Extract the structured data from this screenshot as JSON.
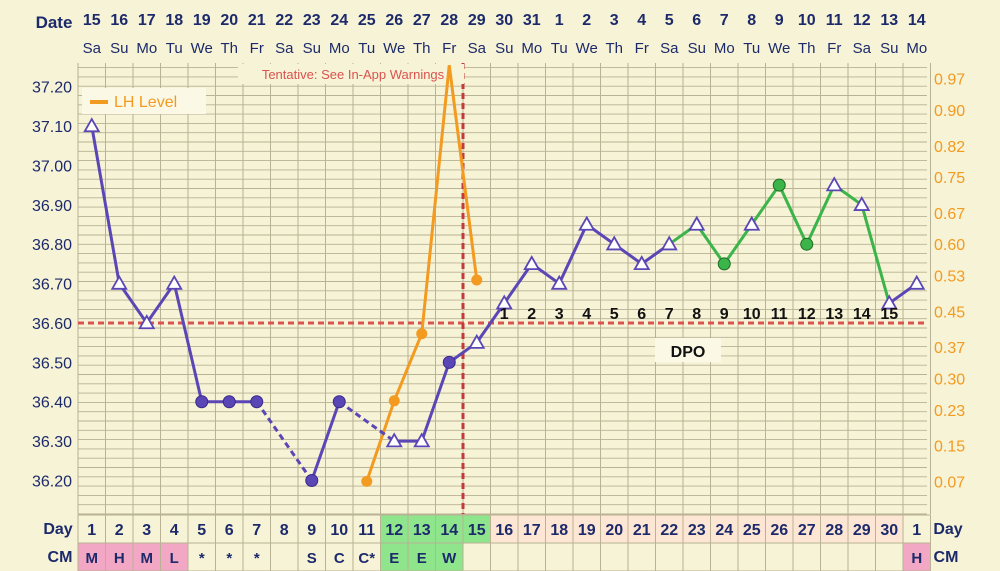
{
  "header": {
    "date_label": "Date",
    "day_label": "Day",
    "cm_label": "CM"
  },
  "annotations": {
    "tentative": "Tentative: See In-App Warnings",
    "dpo": "DPO"
  },
  "legend": {
    "lh": "LH Level"
  },
  "colors": {
    "temp_line": "#5b46b6",
    "post_line": "#3bb54a",
    "lh_line": "#f39a21",
    "coverline": "#d9534f",
    "ovulation_line": "#c23a3a",
    "grid": "#b9b294",
    "background": "#f7f3d6",
    "cm_pink": "#f2a7c4",
    "cm_green": "#8fe58c"
  },
  "chart_data": {
    "type": "line",
    "dates": [
      "15",
      "16",
      "17",
      "18",
      "19",
      "20",
      "21",
      "22",
      "23",
      "24",
      "25",
      "26",
      "27",
      "28",
      "29",
      "30",
      "31",
      "1",
      "2",
      "3",
      "4",
      "5",
      "6",
      "7",
      "8",
      "9",
      "10",
      "11",
      "12",
      "13",
      "14"
    ],
    "weekdays": [
      "Sa",
      "Su",
      "Mo",
      "Tu",
      "We",
      "Th",
      "Fr",
      "Sa",
      "Su",
      "Mo",
      "Tu",
      "We",
      "Th",
      "Fr",
      "Sa",
      "Su",
      "Mo",
      "Tu",
      "We",
      "Th",
      "Fr",
      "Sa",
      "Su",
      "Mo",
      "Tu",
      "We",
      "Th",
      "Fr",
      "Sa",
      "Su",
      "Mo"
    ],
    "cycle_days": [
      "1",
      "2",
      "3",
      "4",
      "5",
      "6",
      "7",
      "8",
      "9",
      "10",
      "11",
      "12",
      "13",
      "14",
      "15",
      "16",
      "17",
      "18",
      "19",
      "20",
      "21",
      "22",
      "23",
      "24",
      "25",
      "26",
      "27",
      "28",
      "29",
      "30",
      "1"
    ],
    "cervical_mucus": [
      "M",
      "H",
      "M",
      "L",
      "*",
      "*",
      "*",
      "",
      "S",
      "C",
      "C*",
      "E",
      "E",
      "W",
      "",
      "",
      "",
      "",
      "",
      "",
      "",
      "",
      "",
      "",
      "",
      "",
      "",
      "",
      "",
      "",
      "H"
    ],
    "y_left": {
      "ticks": [
        "36.20",
        "36.30",
        "36.40",
        "36.50",
        "36.60",
        "36.70",
        "36.80",
        "36.90",
        "37.00",
        "37.10",
        "37.20"
      ],
      "min": 36.115,
      "max": 37.26
    },
    "y_right": {
      "ticks": [
        "0.07",
        "0.15",
        "0.23",
        "0.30",
        "0.37",
        "0.45",
        "0.53",
        "0.60",
        "0.67",
        "0.75",
        "0.82",
        "0.90",
        "0.97"
      ],
      "min": -0.003,
      "max": 1.005
    },
    "temperature": [
      37.1,
      36.7,
      36.6,
      36.7,
      36.4,
      36.4,
      36.4,
      null,
      36.2,
      36.4,
      null,
      36.3,
      36.3,
      36.5,
      36.55,
      36.65,
      36.75,
      36.7,
      36.85,
      36.8,
      36.75,
      36.8,
      36.85,
      36.75,
      36.85,
      36.95,
      36.8,
      36.95,
      36.9,
      36.65,
      36.7
    ],
    "temp_markers": [
      "open",
      "open",
      "open",
      "open",
      "filled",
      "filled",
      "filled",
      null,
      "filled",
      "filled",
      null,
      "open",
      "open",
      "filled",
      "open",
      "open",
      "open",
      "open",
      "open",
      "open",
      "open",
      "open",
      "open",
      "filled",
      "open",
      "filled",
      "filled",
      "open",
      "open",
      "open",
      "open"
    ],
    "temp_segments": [
      {
        "from": 0,
        "to": 1,
        "style": "solid",
        "series": "temp"
      },
      {
        "from": 1,
        "to": 2,
        "style": "solid",
        "series": "temp"
      },
      {
        "from": 2,
        "to": 3,
        "style": "solid",
        "series": "temp"
      },
      {
        "from": 3,
        "to": 4,
        "style": "solid",
        "series": "temp"
      },
      {
        "from": 4,
        "to": 5,
        "style": "solid",
        "series": "temp"
      },
      {
        "from": 5,
        "to": 6,
        "style": "solid",
        "series": "temp"
      },
      {
        "from": 6,
        "to": 8,
        "style": "dashed",
        "series": "temp"
      },
      {
        "from": 8,
        "to": 9,
        "style": "solid",
        "series": "temp"
      },
      {
        "from": 9,
        "to": 11,
        "style": "dashed",
        "series": "temp"
      },
      {
        "from": 11,
        "to": 12,
        "style": "solid",
        "series": "temp"
      },
      {
        "from": 12,
        "to": 13,
        "style": "solid",
        "series": "temp"
      },
      {
        "from": 13,
        "to": 14,
        "style": "solid",
        "series": "temp"
      },
      {
        "from": 14,
        "to": 15,
        "style": "solid",
        "series": "temp"
      },
      {
        "from": 15,
        "to": 16,
        "style": "solid",
        "series": "temp"
      },
      {
        "from": 16,
        "to": 17,
        "style": "solid",
        "series": "temp"
      },
      {
        "from": 17,
        "to": 18,
        "style": "solid",
        "series": "temp"
      },
      {
        "from": 18,
        "to": 19,
        "style": "solid",
        "series": "temp"
      },
      {
        "from": 19,
        "to": 20,
        "style": "solid",
        "series": "temp"
      },
      {
        "from": 20,
        "to": 21,
        "style": "solid",
        "series": "temp"
      },
      {
        "from": 21,
        "to": 22,
        "style": "solid",
        "series": "post"
      },
      {
        "from": 22,
        "to": 23,
        "style": "solid",
        "series": "post"
      },
      {
        "from": 23,
        "to": 24,
        "style": "solid",
        "series": "post"
      },
      {
        "from": 24,
        "to": 25,
        "style": "solid",
        "series": "post"
      },
      {
        "from": 25,
        "to": 26,
        "style": "solid",
        "series": "post"
      },
      {
        "from": 26,
        "to": 27,
        "style": "solid",
        "series": "post"
      },
      {
        "from": 27,
        "to": 28,
        "style": "solid",
        "series": "post"
      },
      {
        "from": 28,
        "to": 29,
        "style": "solid",
        "series": "post"
      },
      {
        "from": 29,
        "to": 30,
        "style": "solid",
        "series": "temp"
      }
    ],
    "lh": [
      {
        "day": 11,
        "value": 0.07
      },
      {
        "day": 12,
        "value": 0.25
      },
      {
        "day": 13,
        "value": 0.4
      },
      {
        "day": 14,
        "value": 1.0
      },
      {
        "day": 15,
        "value": 0.52
      }
    ],
    "coverline": 36.6,
    "ovulation_day": 15,
    "dpo": [
      "1",
      "2",
      "3",
      "4",
      "5",
      "6",
      "7",
      "8",
      "9",
      "10",
      "11",
      "12",
      "13",
      "14",
      "15"
    ]
  }
}
